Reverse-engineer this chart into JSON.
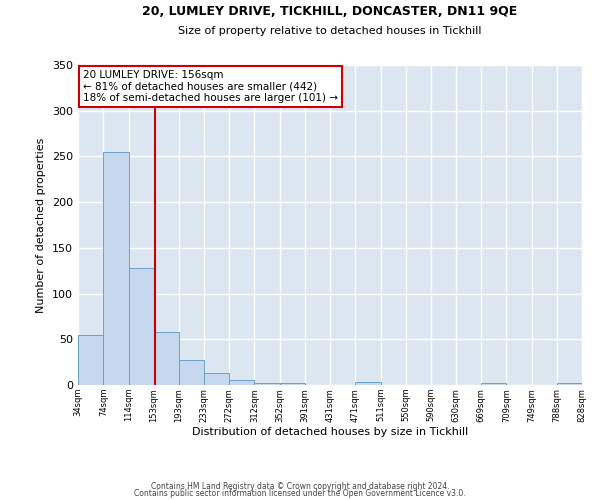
{
  "title1": "20, LUMLEY DRIVE, TICKHILL, DONCASTER, DN11 9QE",
  "title2": "Size of property relative to detached houses in Tickhill",
  "xlabel": "Distribution of detached houses by size in Tickhill",
  "ylabel": "Number of detached properties",
  "bar_color": "#c5d8ee",
  "bar_edge_color": "#6aa0cc",
  "background_color": "#dce6f0",
  "fig_background_color": "#ffffff",
  "grid_color": "#ffffff",
  "vline_x": 156,
  "vline_color": "#cc0000",
  "annotation_title": "20 LUMLEY DRIVE: 156sqm",
  "annotation_line1": "← 81% of detached houses are smaller (442)",
  "annotation_line2": "18% of semi-detached houses are larger (101) →",
  "annotation_box_color": "#ffffff",
  "annotation_box_edge_color": "#cc0000",
  "bin_edges": [
    34,
    74,
    114,
    153,
    193,
    233,
    272,
    312,
    352,
    391,
    431,
    471,
    511,
    550,
    590,
    630,
    669,
    709,
    749,
    788,
    828
  ],
  "bin_labels": [
    "34sqm",
    "74sqm",
    "114sqm",
    "153sqm",
    "193sqm",
    "233sqm",
    "272sqm",
    "312sqm",
    "352sqm",
    "391sqm",
    "431sqm",
    "471sqm",
    "511sqm",
    "550sqm",
    "590sqm",
    "630sqm",
    "669sqm",
    "709sqm",
    "749sqm",
    "788sqm",
    "828sqm"
  ],
  "bar_heights": [
    55,
    255,
    128,
    58,
    27,
    13,
    5,
    2,
    2,
    0,
    0,
    3,
    0,
    0,
    0,
    0,
    2,
    0,
    0,
    2
  ],
  "ylim": [
    0,
    350
  ],
  "yticks": [
    0,
    50,
    100,
    150,
    200,
    250,
    300,
    350
  ],
  "footer1": "Contains HM Land Registry data © Crown copyright and database right 2024.",
  "footer2": "Contains public sector information licensed under the Open Government Licence v3.0."
}
